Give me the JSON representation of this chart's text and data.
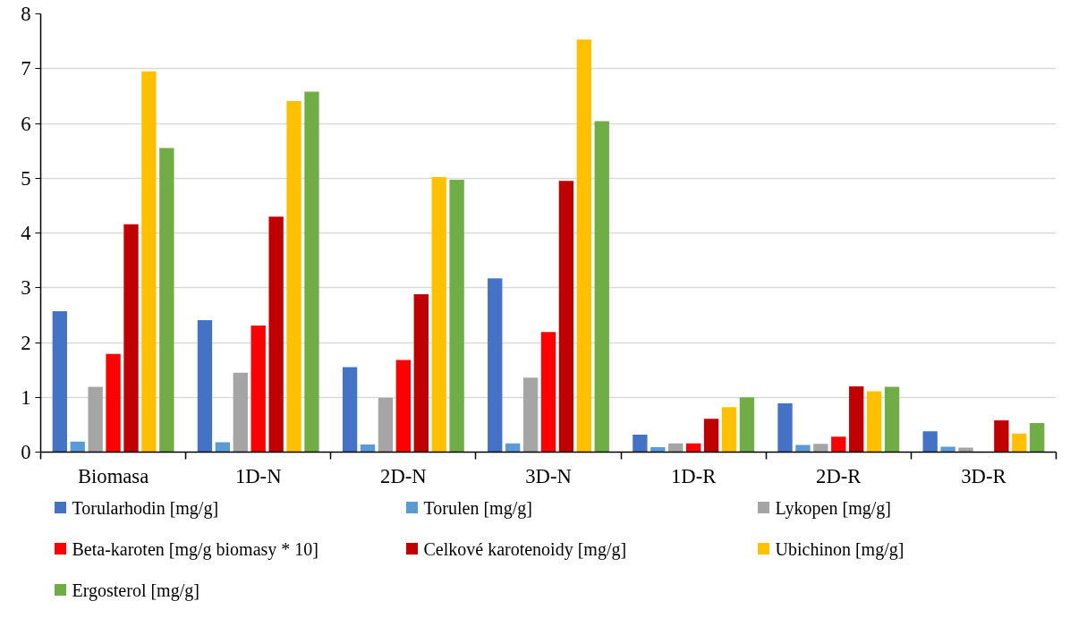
{
  "chart_data": {
    "type": "bar",
    "categories": [
      "Biomasa",
      "1D-N",
      "2D-N",
      "3D-N",
      "1D-R",
      "2D-R",
      "3D-R"
    ],
    "series": [
      {
        "name": "Torularhodin [mg/g]",
        "color": "#4472c4",
        "values": [
          2.57,
          2.41,
          1.55,
          3.17,
          0.32,
          0.89,
          0.38
        ]
      },
      {
        "name": "Torulen [mg/g]",
        "color": "#5b9bd5",
        "values": [
          0.19,
          0.18,
          0.14,
          0.16,
          0.09,
          0.13,
          0.1
        ]
      },
      {
        "name": "Lykopen [mg/g]",
        "color": "#a5a5a5",
        "values": [
          1.19,
          1.45,
          0.99,
          1.36,
          0.16,
          0.15,
          0.08
        ]
      },
      {
        "name": "Beta-karoten [mg/g biomasy * 10]",
        "color": "#ff0000",
        "values": [
          1.79,
          2.31,
          1.68,
          2.19,
          0.16,
          0.28,
          null
        ]
      },
      {
        "name": "Celkové karotenoidy [mg/g]",
        "color": "#c00000",
        "values": [
          4.16,
          4.3,
          2.88,
          4.95,
          0.61,
          1.2,
          0.58
        ]
      },
      {
        "name": "Ubichinon [mg/g]",
        "color": "#ffc000",
        "values": [
          6.95,
          6.41,
          5.02,
          7.53,
          0.82,
          1.11,
          0.34
        ]
      },
      {
        "name": "Ergosterol [mg/g]",
        "color": "#70ad47",
        "values": [
          5.55,
          6.58,
          4.97,
          6.04,
          1.0,
          1.19,
          0.53
        ]
      }
    ],
    "ylim": [
      0,
      8
    ],
    "yticks": [
      0,
      1,
      2,
      3,
      4,
      5,
      6,
      7,
      8
    ],
    "grid": "y",
    "legend": "bottom"
  }
}
